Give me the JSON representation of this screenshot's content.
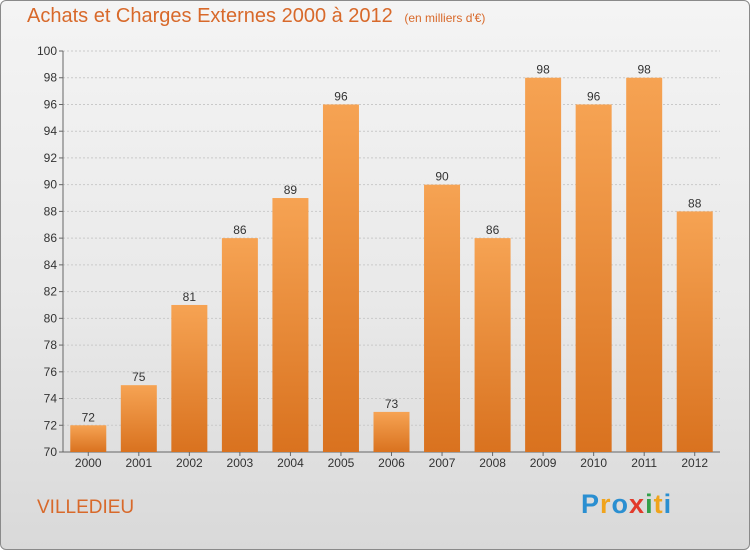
{
  "chart_data": {
    "type": "bar",
    "title": "Achats et Charges Externes 2000 à 2012",
    "subtitle": "(en milliers d'€)",
    "categories": [
      "2000",
      "2001",
      "2002",
      "2003",
      "2004",
      "2005",
      "2006",
      "2007",
      "2008",
      "2009",
      "2010",
      "2011",
      "2012"
    ],
    "values": [
      72,
      75,
      81,
      86,
      89,
      96,
      73,
      90,
      86,
      98,
      96,
      98,
      88
    ],
    "ylim": [
      70,
      100
    ],
    "yticks": [
      70,
      72,
      74,
      76,
      78,
      80,
      82,
      84,
      86,
      88,
      90,
      92,
      94,
      96,
      98,
      100
    ],
    "grid": true,
    "bar_color": "#f0953d"
  },
  "town": "VILLEDIEU",
  "logo": {
    "letters": [
      "P",
      "r",
      "o",
      "x",
      "i",
      "t",
      "i"
    ],
    "colors": [
      "#2a8fd1",
      "#f0a41c",
      "#2a8fd1",
      "#e23a2b",
      "#33a04a",
      "#f0a41c",
      "#2a8fd1"
    ]
  }
}
